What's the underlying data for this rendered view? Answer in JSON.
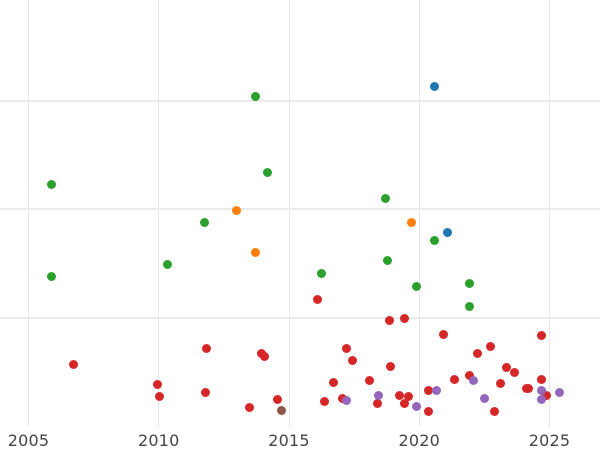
{
  "chart_data": {
    "type": "scatter",
    "title": "",
    "xlabel": "",
    "ylabel": "",
    "xlim": [
      2004.0,
      2027.0
    ],
    "ylim": [
      0,
      3.92
    ],
    "grid": true,
    "legend": null,
    "x_ticks": [
      2005,
      2010,
      2015,
      2020,
      2025
    ],
    "x_tick_labels": [
      "2005",
      "2010",
      "2015",
      "2020",
      "2025"
    ],
    "y_gridlines": [
      1,
      2,
      3
    ],
    "y_tick_labels_visible": false,
    "colors": {
      "blue": "#1f77b4",
      "orange": "#ff7f0e",
      "green": "#2ca02c",
      "red": "#d62728",
      "purple": "#9467bd",
      "brown": "#8c564b"
    },
    "series": [
      {
        "name": "blue",
        "color": "#1f77b4",
        "points": [
          [
            2020.57,
            3.13
          ],
          [
            2021.07,
            1.79
          ]
        ]
      },
      {
        "name": "orange",
        "color": "#ff7f0e",
        "points": [
          [
            2013.0,
            1.99
          ],
          [
            2013.73,
            1.6
          ],
          [
            2019.72,
            1.88
          ]
        ]
      },
      {
        "name": "green",
        "color": "#2ca02c",
        "points": [
          [
            2005.9,
            2.23
          ],
          [
            2005.9,
            1.38
          ],
          [
            2010.32,
            1.49
          ],
          [
            2011.74,
            1.88
          ],
          [
            2013.73,
            3.04
          ],
          [
            2014.16,
            2.34
          ],
          [
            2016.23,
            1.41
          ],
          [
            2018.72,
            2.1
          ],
          [
            2018.8,
            1.53
          ],
          [
            2019.88,
            1.29
          ],
          [
            2020.57,
            1.71
          ],
          [
            2021.91,
            1.32
          ],
          [
            2021.91,
            1.11
          ]
        ]
      },
      {
        "name": "red",
        "color": "#d62728",
        "points": [
          [
            2006.71,
            0.57
          ],
          [
            2009.97,
            0.39
          ],
          [
            2010.04,
            0.28
          ],
          [
            2011.82,
            0.72
          ],
          [
            2011.78,
            0.32
          ],
          [
            2013.48,
            0.18
          ],
          [
            2013.94,
            0.68
          ],
          [
            2014.06,
            0.65
          ],
          [
            2014.54,
            0.25
          ],
          [
            2016.11,
            1.17
          ],
          [
            2016.38,
            0.23
          ],
          [
            2016.72,
            0.41
          ],
          [
            2017.04,
            0.26
          ],
          [
            2017.22,
            0.72
          ],
          [
            2017.45,
            0.61
          ],
          [
            2018.1,
            0.43
          ],
          [
            2018.4,
            0.22
          ],
          [
            2018.87,
            0.98
          ],
          [
            2018.9,
            0.56
          ],
          [
            2019.26,
            0.29
          ],
          [
            2019.44,
            1.0
          ],
          [
            2019.44,
            0.22
          ],
          [
            2019.57,
            0.28
          ],
          [
            2020.34,
            0.34
          ],
          [
            2020.34,
            0.14
          ],
          [
            2020.95,
            0.85
          ],
          [
            2021.35,
            0.44
          ],
          [
            2021.91,
            0.47
          ],
          [
            2022.23,
            0.68
          ],
          [
            2022.73,
            0.74
          ],
          [
            2022.88,
            0.14
          ],
          [
            2023.12,
            0.4
          ],
          [
            2023.35,
            0.55
          ],
          [
            2023.66,
            0.5
          ],
          [
            2024.1,
            0.35
          ],
          [
            2024.21,
            0.35
          ],
          [
            2024.68,
            0.44
          ],
          [
            2024.68,
            0.84
          ],
          [
            2024.87,
            0.29
          ]
        ]
      },
      {
        "name": "purple",
        "color": "#9467bd",
        "points": [
          [
            2017.22,
            0.24
          ],
          [
            2018.45,
            0.29
          ],
          [
            2019.88,
            0.19
          ],
          [
            2020.68,
            0.34
          ],
          [
            2022.1,
            0.43
          ],
          [
            2022.52,
            0.26
          ],
          [
            2024.68,
            0.34
          ],
          [
            2024.68,
            0.25
          ],
          [
            2025.4,
            0.32
          ]
        ]
      },
      {
        "name": "brown",
        "color": "#8c564b",
        "points": [
          [
            2014.73,
            0.15
          ]
        ]
      }
    ]
  },
  "axis": {
    "x_labels": [
      "2005",
      "2010",
      "2015",
      "2020",
      "2025"
    ]
  }
}
